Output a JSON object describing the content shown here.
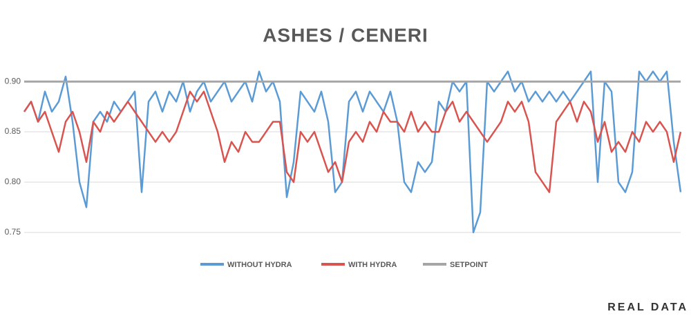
{
  "chart_data": {
    "type": "line",
    "title": "ASHES / CENERI",
    "note": "REAL DATA",
    "ylim": [
      0.73,
      0.92
    ],
    "yticks": [
      0.75,
      {
        "value": 0.8,
        "label": "0.80"
      },
      0.85,
      {
        "value": 0.9,
        "label": "0.90"
      }
    ],
    "grid": true,
    "legend": "bottom",
    "series": [
      {
        "name": "WITHOUT HYDRA",
        "color": "#5b9bd5",
        "values": [
          0.87,
          0.88,
          0.86,
          0.89,
          0.87,
          0.88,
          0.905,
          0.86,
          0.8,
          0.775,
          0.86,
          0.87,
          0.86,
          0.88,
          0.87,
          0.88,
          0.89,
          0.79,
          0.88,
          0.89,
          0.87,
          0.89,
          0.88,
          0.9,
          0.87,
          0.89,
          0.9,
          0.88,
          0.89,
          0.9,
          0.88,
          0.89,
          0.9,
          0.88,
          0.91,
          0.89,
          0.9,
          0.88,
          0.785,
          0.82,
          0.89,
          0.88,
          0.87,
          0.89,
          0.86,
          0.79,
          0.8,
          0.88,
          0.89,
          0.87,
          0.89,
          0.88,
          0.87,
          0.89,
          0.86,
          0.8,
          0.79,
          0.82,
          0.81,
          0.82,
          0.88,
          0.87,
          0.9,
          0.89,
          0.9,
          0.75,
          0.77,
          0.9,
          0.89,
          0.9,
          0.91,
          0.89,
          0.9,
          0.88,
          0.89,
          0.88,
          0.89,
          0.88,
          0.89,
          0.88,
          0.89,
          0.9,
          0.91,
          0.8,
          0.9,
          0.89,
          0.8,
          0.79,
          0.81,
          0.91,
          0.9,
          0.91,
          0.9,
          0.91,
          0.84,
          0.79
        ]
      },
      {
        "name": "WITH HYDRA",
        "color": "#d9534f",
        "values": [
          0.87,
          0.88,
          0.86,
          0.87,
          0.85,
          0.83,
          0.86,
          0.87,
          0.85,
          0.82,
          0.86,
          0.85,
          0.87,
          0.86,
          0.87,
          0.88,
          0.87,
          0.86,
          0.85,
          0.84,
          0.85,
          0.84,
          0.85,
          0.87,
          0.89,
          0.88,
          0.89,
          0.87,
          0.85,
          0.82,
          0.84,
          0.83,
          0.85,
          0.84,
          0.84,
          0.85,
          0.86,
          0.86,
          0.81,
          0.8,
          0.85,
          0.84,
          0.85,
          0.83,
          0.81,
          0.82,
          0.8,
          0.84,
          0.85,
          0.84,
          0.86,
          0.85,
          0.87,
          0.86,
          0.86,
          0.85,
          0.87,
          0.85,
          0.86,
          0.85,
          0.85,
          0.87,
          0.88,
          0.86,
          0.87,
          0.86,
          0.85,
          0.84,
          0.85,
          0.86,
          0.88,
          0.87,
          0.88,
          0.86,
          0.81,
          0.8,
          0.79,
          0.86,
          0.87,
          0.88,
          0.86,
          0.88,
          0.87,
          0.84,
          0.86,
          0.83,
          0.84,
          0.83,
          0.85,
          0.84,
          0.86,
          0.85,
          0.86,
          0.85,
          0.82,
          0.85
        ]
      },
      {
        "name": "SETPOINT",
        "color": "#a5a5a5",
        "values": [
          0.9,
          0.9,
          0.9,
          0.9,
          0.9,
          0.9,
          0.9,
          0.9,
          0.9,
          0.9,
          0.9,
          0.9,
          0.9,
          0.9,
          0.9,
          0.9,
          0.9,
          0.9,
          0.9,
          0.9,
          0.9,
          0.9,
          0.9,
          0.9,
          0.9,
          0.9,
          0.9,
          0.9,
          0.9,
          0.9,
          0.9,
          0.9,
          0.9,
          0.9,
          0.9,
          0.9,
          0.9,
          0.9,
          0.9,
          0.9,
          0.9,
          0.9,
          0.9,
          0.9,
          0.9,
          0.9,
          0.9,
          0.9,
          0.9,
          0.9,
          0.9,
          0.9,
          0.9,
          0.9,
          0.9,
          0.9,
          0.9,
          0.9,
          0.9,
          0.9,
          0.9,
          0.9,
          0.9,
          0.9,
          0.9,
          0.9,
          0.9,
          0.9,
          0.9,
          0.9,
          0.9,
          0.9,
          0.9,
          0.9,
          0.9,
          0.9,
          0.9,
          0.9,
          0.9,
          0.9,
          0.9,
          0.9,
          0.9,
          0.9,
          0.9,
          0.9,
          0.9,
          0.9,
          0.9,
          0.9,
          0.9,
          0.9,
          0.9,
          0.9,
          0.9,
          0.9
        ]
      }
    ]
  }
}
